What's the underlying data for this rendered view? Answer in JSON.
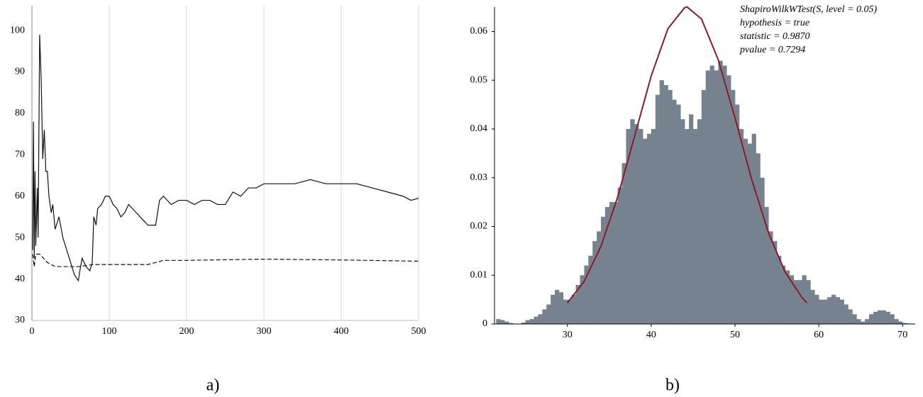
{
  "chart_data": [
    {
      "type": "line",
      "caption": "a)",
      "xlim": [
        0,
        500
      ],
      "ylim": [
        30,
        106
      ],
      "xticks": [
        0,
        100,
        200,
        300,
        400,
        500
      ],
      "yticks": [
        30,
        40,
        50,
        60,
        70,
        80,
        90,
        100
      ],
      "grid": "x",
      "series": [
        {
          "color": "#111111",
          "dash": false,
          "x": [
            1,
            2,
            3,
            4,
            5,
            7,
            8,
            10,
            12,
            14,
            16,
            18,
            20,
            22,
            25,
            27,
            30,
            35,
            40,
            45,
            50,
            55,
            60,
            62,
            65,
            70,
            75,
            78,
            80,
            83,
            85,
            90,
            95,
            100,
            105,
            110,
            115,
            120,
            125,
            130,
            135,
            140,
            145,
            150,
            155,
            160,
            165,
            170,
            180,
            190,
            200,
            210,
            220,
            230,
            240,
            250,
            260,
            270,
            280,
            290,
            300,
            320,
            340,
            360,
            380,
            400,
            420,
            440,
            460,
            480,
            490,
            500
          ],
          "values": [
            47,
            78,
            45,
            66,
            48,
            62,
            50,
            99,
            88,
            69,
            76,
            66,
            66,
            60,
            56,
            58,
            52,
            55,
            50,
            47,
            44,
            41,
            39.6,
            42,
            45,
            43,
            42,
            44,
            55,
            53,
            57,
            58,
            60,
            60,
            58,
            57,
            55,
            56,
            58,
            57,
            56,
            55,
            54,
            53,
            53,
            53,
            59,
            60,
            58,
            59,
            59,
            58,
            59,
            59,
            58,
            58,
            61,
            60,
            62,
            62,
            63,
            63,
            63,
            64,
            63,
            63,
            63,
            62,
            61,
            60,
            59,
            59.5
          ]
        },
        {
          "color": "#111111",
          "dash": true,
          "x": [
            1,
            3,
            5,
            10,
            15,
            20,
            30,
            40,
            60,
            80,
            100,
            150,
            170,
            200,
            300,
            400,
            500
          ],
          "values": [
            46,
            43,
            46,
            46,
            45,
            44,
            43,
            43,
            43,
            43.5,
            43.5,
            43.5,
            44.5,
            44.5,
            44.8,
            44.6,
            44.3
          ]
        }
      ]
    },
    {
      "type": "histogram",
      "caption": "b)",
      "xlim": [
        21.3,
        71.5
      ],
      "ylim": [
        0,
        0.065
      ],
      "xticks": [
        30,
        40,
        50,
        60,
        70
      ],
      "yticks": [
        0,
        0.01,
        0.02,
        0.03,
        0.04,
        0.05,
        0.06
      ],
      "grid": false,
      "color": "#76838f",
      "bins": [
        21.5,
        22,
        22.5,
        23,
        23.5,
        24,
        24.5,
        25,
        25.5,
        26,
        26.5,
        27,
        27.5,
        28,
        28.5,
        29,
        29.5,
        30,
        30.5,
        31,
        31.5,
        32,
        32.5,
        33,
        33.5,
        34,
        34.5,
        35,
        35.5,
        36,
        36.5,
        37,
        37.5,
        38,
        38.5,
        39,
        39.5,
        40,
        40.5,
        41,
        41.5,
        42,
        42.5,
        43,
        43.5,
        44,
        44.5,
        45,
        45.5,
        46,
        46.5,
        47,
        47.5,
        48,
        48.5,
        49,
        49.5,
        50,
        50.5,
        51,
        51.5,
        52,
        52.5,
        53,
        53.5,
        54,
        54.5,
        55,
        55.5,
        56,
        56.5,
        57,
        57.5,
        58,
        58.5,
        59,
        59.5,
        60,
        60.5,
        61,
        61.5,
        62,
        62.5,
        63,
        63.5,
        64,
        64.5,
        65,
        65.5,
        66,
        66.5,
        67,
        67.5,
        68,
        68.5,
        69,
        69.5,
        70,
        70.5,
        71,
        71.5
      ],
      "values": [
        0.001,
        0.0008,
        0.0005,
        0.0002,
        0,
        0,
        0.0003,
        0.0008,
        0.001,
        0.0015,
        0.002,
        0.003,
        0.004,
        0.006,
        0.007,
        0.0065,
        0.005,
        0.005,
        0.006,
        0.008,
        0.01,
        0.012,
        0.014,
        0.017,
        0.019,
        0.022,
        0.024,
        0.025,
        0.025,
        0.028,
        0.033,
        0.04,
        0.042,
        0.041,
        0.04,
        0.038,
        0.039,
        0.04,
        0.047,
        0.05,
        0.049,
        0.048,
        0.046,
        0.045,
        0.042,
        0.04,
        0.043,
        0.04,
        0.042,
        0.048,
        0.052,
        0.053,
        0.052,
        0.054,
        0.053,
        0.051,
        0.048,
        0.045,
        0.04,
        0.038,
        0.037,
        0.039,
        0.035,
        0.03,
        0.024,
        0.019,
        0.017,
        0.014,
        0.012,
        0.011,
        0.01,
        0.009,
        0.009,
        0.01,
        0.009,
        0.007,
        0.006,
        0.005,
        0.005,
        0.0055,
        0.006,
        0.0055,
        0.005,
        0.004,
        0.003,
        0.002,
        0.001,
        0.0005,
        0.001,
        0.002,
        0.0025,
        0.0028,
        0.0028,
        0.0025,
        0.002,
        0.001,
        0.0005,
        0.0002,
        0.0001,
        0
      ],
      "curve": {
        "color": "#8b1a2e",
        "x": [
          30,
          32,
          34,
          36,
          38,
          40,
          42,
          44,
          44.3,
          46,
          48,
          50,
          52,
          54,
          56,
          58,
          58.6
        ],
        "values": [
          0.00432,
          0.00874,
          0.01592,
          0.02606,
          0.03841,
          0.05087,
          0.0606,
          0.0649,
          0.065,
          0.06256,
          0.0542,
          0.04225,
          0.0296,
          0.01866,
          0.01058,
          0.0054,
          0.00432
        ]
      },
      "annotations": [
        "ShapiroWilkWTest(S, level = 0.05)",
        "hypothesis = true",
        "statistic = 0.9870",
        "pvalue = 0.7294"
      ]
    }
  ]
}
